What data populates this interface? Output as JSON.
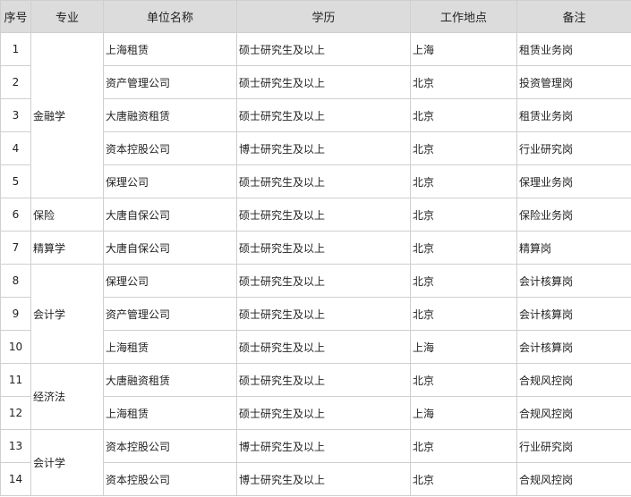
{
  "headers": [
    "序号",
    "专业",
    "单位名称",
    "学历",
    "工作地点",
    "备注"
  ],
  "major_groups": [
    {
      "label": "金融学",
      "rows": 5
    },
    {
      "label": "保险",
      "rows": 1
    },
    {
      "label": "精算学",
      "rows": 1
    },
    {
      "label": "会计学",
      "rows": 3
    },
    {
      "label": "经济法",
      "rows": 2
    },
    {
      "label": "会计学",
      "rows": 2
    }
  ],
  "rows": [
    {
      "no": "1",
      "unit": "上海租赁",
      "edu": "硕士研究生及以上",
      "loc": "上海",
      "note": "租赁业务岗"
    },
    {
      "no": "2",
      "unit": "资产管理公司",
      "edu": "硕士研究生及以上",
      "loc": "北京",
      "note": "投资管理岗"
    },
    {
      "no": "3",
      "unit": "大唐融资租赁",
      "edu": "硕士研究生及以上",
      "loc": "北京",
      "note": "租赁业务岗"
    },
    {
      "no": "4",
      "unit": "资本控股公司",
      "edu": "博士研究生及以上",
      "loc": "北京",
      "note": "行业研究岗"
    },
    {
      "no": "5",
      "unit": "保理公司",
      "edu": "硕士研究生及以上",
      "loc": "北京",
      "note": "保理业务岗"
    },
    {
      "no": "6",
      "unit": "大唐自保公司",
      "edu": "硕士研究生及以上",
      "loc": "北京",
      "note": "保险业务岗"
    },
    {
      "no": "7",
      "unit": "大唐自保公司",
      "edu": "硕士研究生及以上",
      "loc": "北京",
      "note": "精算岗"
    },
    {
      "no": "8",
      "unit": "保理公司",
      "edu": "硕士研究生及以上",
      "loc": "北京",
      "note": "会计核算岗"
    },
    {
      "no": "9",
      "unit": "资产管理公司",
      "edu": "硕士研究生及以上",
      "loc": "北京",
      "note": "会计核算岗"
    },
    {
      "no": "10",
      "unit": "上海租赁",
      "edu": "硕士研究生及以上",
      "loc": "上海",
      "note": "会计核算岗"
    },
    {
      "no": "11",
      "unit": "大唐融资租赁",
      "edu": "硕士研究生及以上",
      "loc": "北京",
      "note": "合规风控岗"
    },
    {
      "no": "12",
      "unit": "上海租赁",
      "edu": "硕士研究生及以上",
      "loc": "上海",
      "note": "合规风控岗"
    },
    {
      "no": "13",
      "unit": "资本控股公司",
      "edu": "博士研究生及以上",
      "loc": "北京",
      "note": "行业研究岗"
    },
    {
      "no": "14",
      "unit": "资本控股公司",
      "edu": "博士研究生及以上",
      "loc": "北京",
      "note": "合规风控岗"
    }
  ]
}
